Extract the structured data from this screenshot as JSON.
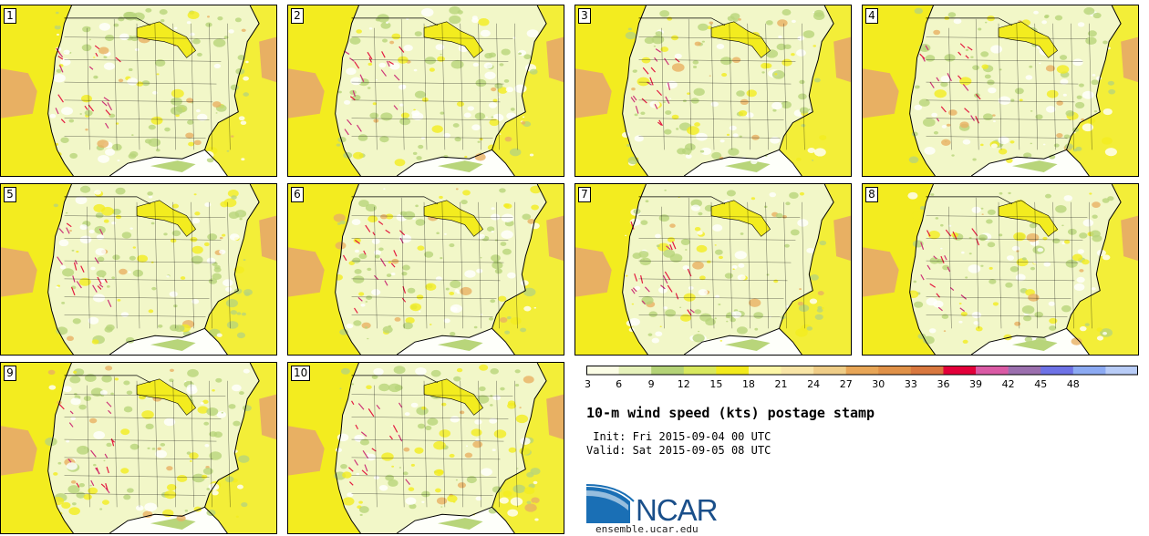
{
  "title": "10-m wind speed (kts) postage stamp",
  "init_label": " Init: Fri 2015-09-04 00 UTC",
  "valid_label": "Valid: Sat 2015-09-05 08 UTC",
  "logo_text": "NCAR",
  "site": "ensemble.ucar.edu",
  "members": [
    "1",
    "2",
    "3",
    "4",
    "5",
    "6",
    "7",
    "8",
    "9",
    "10"
  ],
  "colorbar": {
    "tick_labels": [
      "3",
      "6",
      "9",
      "12",
      "15",
      "18",
      "21",
      "24",
      "27",
      "30",
      "33",
      "36",
      "39",
      "42",
      "45",
      "48"
    ],
    "colors": [
      "#fbfde6",
      "#e6f2bb",
      "#b4d377",
      "#d8e85e",
      "#f2ea1d",
      "#fcf6a6",
      "#f8e5a6",
      "#efcd87",
      "#e8a657",
      "#e09148",
      "#d9783f",
      "#e3003a",
      "#da5aa5",
      "#9b6fae",
      "#6e72e6",
      "#8caaf3",
      "#b8ccf7"
    ]
  },
  "map_colors": {
    "background": "#f2f7c8",
    "calm": "#ffffff",
    "moderate": "#b8d57a",
    "strong": "#f3ec1f",
    "high": "#e8b063",
    "extreme": "#e31a3f",
    "borders": "#000000"
  }
}
